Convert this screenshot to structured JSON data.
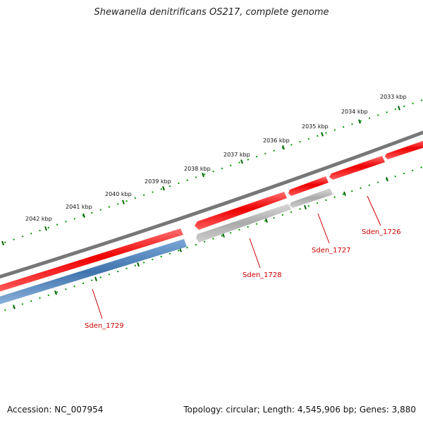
{
  "title": "Shewanella denitrificans OS217, complete genome",
  "footer": {
    "accession": "Accession: NC_007954",
    "summary": "Topology: circular; Length: 4,545,906 bp; Genes: 3,880"
  },
  "ticks": [
    {
      "label": "2042 kbp"
    },
    {
      "label": "2041 kbp"
    },
    {
      "label": "2040 kbp"
    },
    {
      "label": "2039 kbp"
    },
    {
      "label": "2038 kbp"
    },
    {
      "label": "2037 kbp"
    },
    {
      "label": "2036 kbp"
    },
    {
      "label": "2035 kbp"
    },
    {
      "label": "2034 kbp"
    },
    {
      "label": "2033 kbp"
    }
  ],
  "genes": [
    {
      "name": "Sden_1726",
      "strand": "reverse",
      "color": "#ee0000"
    },
    {
      "name": "Sden_1727",
      "strand": "forward",
      "color": "#aaaaaa"
    },
    {
      "name": "Sden_1728",
      "strand": "forward",
      "color": "#aaaaaa"
    },
    {
      "name": "Sden_1729",
      "strand": "forward",
      "color": "#4a7fb5"
    }
  ],
  "colors": {
    "backbone": "#777777",
    "tick_major": "#006600",
    "tick_minor": "#009900",
    "gene_label": "#cc0000",
    "red_feature": "#ee0000"
  }
}
